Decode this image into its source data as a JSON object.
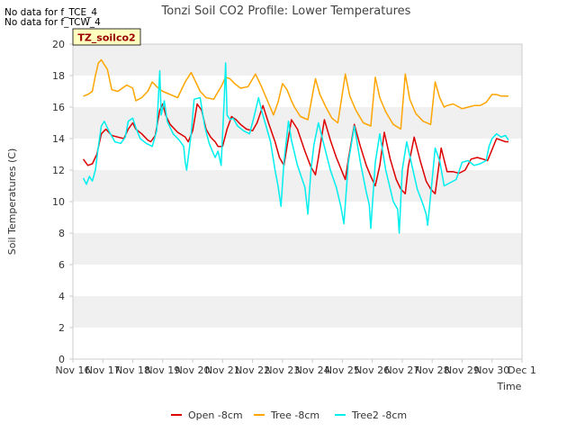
{
  "notes": [
    "No data for f_TCE_4",
    "No data for f_TCW_4"
  ],
  "site_badge": "TZ_soilco2",
  "colors": {
    "band": "#f0f0f0",
    "axis": "#cccccc",
    "text": "#333333",
    "badge_bg": "#ffffc0",
    "badge_text": "#990000"
  },
  "chart_data": {
    "type": "line",
    "title": "Tonzi Soil CO2 Profile: Lower Temperatures",
    "xlabel": "Time",
    "ylabel": "Soil Temperatures (C)",
    "xlim": [
      0,
      15
    ],
    "ylim": [
      0,
      20
    ],
    "x_ticks": [
      0,
      1,
      2,
      3,
      4,
      5,
      6,
      7,
      8,
      9,
      10,
      11,
      12,
      13,
      14,
      15
    ],
    "x_tick_labels": [
      "Nov 16",
      "Nov 17",
      "Nov 18",
      "Nov 19",
      "Nov 20",
      "Nov 21",
      "Nov 22",
      "Nov 23",
      "Nov 24",
      "Nov 25",
      "Nov 26",
      "Nov 27",
      "Nov 28",
      "Nov 29",
      "Nov 30",
      "Dec 1"
    ],
    "y_ticks": [
      0,
      2,
      4,
      6,
      8,
      10,
      12,
      14,
      16,
      18,
      20
    ],
    "grid": "alternating horizontal bands",
    "legend_position": "bottom",
    "series": [
      {
        "name": "Open -8cm",
        "color": "#dd0000",
        "x": [
          0.35,
          0.5,
          0.65,
          0.8,
          0.95,
          1.1,
          1.3,
          1.5,
          1.7,
          1.85,
          2.0,
          2.1,
          2.3,
          2.5,
          2.6,
          2.75,
          2.9,
          3.0,
          3.1,
          3.25,
          3.5,
          3.75,
          3.85,
          4.0,
          4.15,
          4.3,
          4.45,
          4.6,
          4.75,
          4.85,
          5.0,
          5.15,
          5.3,
          5.45,
          5.6,
          5.8,
          6.0,
          6.15,
          6.35,
          6.55,
          6.75,
          6.9,
          7.05,
          7.15,
          7.3,
          7.5,
          7.75,
          7.95,
          8.1,
          8.2,
          8.4,
          8.6,
          8.8,
          8.95,
          9.1,
          9.2,
          9.4,
          9.6,
          9.8,
          9.95,
          10.1,
          10.25,
          10.4,
          10.6,
          10.8,
          10.95,
          11.1,
          11.2,
          11.4,
          11.6,
          11.8,
          11.95,
          12.1,
          12.3,
          12.5,
          12.7,
          12.9,
          13.1,
          13.3,
          13.5,
          13.7,
          13.85,
          14.0,
          14.15,
          14.3,
          14.45,
          14.55
        ],
        "y": [
          12.7,
          12.3,
          12.4,
          13.0,
          14.3,
          14.6,
          14.2,
          14.1,
          14.0,
          14.6,
          15.0,
          14.6,
          14.3,
          13.9,
          13.8,
          14.2,
          15.8,
          16.2,
          15.5,
          14.9,
          14.4,
          14.1,
          13.8,
          14.5,
          16.2,
          15.8,
          14.6,
          14.1,
          13.8,
          13.5,
          13.5,
          14.6,
          15.4,
          15.2,
          14.9,
          14.6,
          14.5,
          15.0,
          16.1,
          14.9,
          13.8,
          12.8,
          12.3,
          13.5,
          15.2,
          14.6,
          13.2,
          12.2,
          11.7,
          12.8,
          15.2,
          13.9,
          12.8,
          12.1,
          11.4,
          12.7,
          14.9,
          13.5,
          12.3,
          11.6,
          11.0,
          12.3,
          14.4,
          12.7,
          11.4,
          10.8,
          10.5,
          12.2,
          14.1,
          12.6,
          11.3,
          10.8,
          10.5,
          13.4,
          11.9,
          11.9,
          11.8,
          12.0,
          12.7,
          12.8,
          12.7,
          12.6,
          13.3,
          14.0,
          13.9,
          13.8,
          13.8
        ]
      },
      {
        "name": "Tree -8cm",
        "color": "#ffa500",
        "x": [
          0.35,
          0.5,
          0.65,
          0.75,
          0.85,
          0.95,
          1.05,
          1.15,
          1.3,
          1.5,
          1.65,
          1.8,
          2.0,
          2.1,
          2.3,
          2.5,
          2.65,
          2.8,
          3.0,
          3.25,
          3.5,
          3.75,
          3.95,
          4.1,
          4.25,
          4.45,
          4.7,
          4.95,
          5.1,
          5.25,
          5.4,
          5.6,
          5.85,
          6.1,
          6.3,
          6.5,
          6.7,
          6.85,
          7.0,
          7.15,
          7.3,
          7.4,
          7.6,
          7.85,
          8.1,
          8.25,
          8.45,
          8.65,
          8.85,
          9.1,
          9.25,
          9.45,
          9.7,
          9.95,
          10.1,
          10.25,
          10.45,
          10.7,
          10.95,
          11.1,
          11.25,
          11.45,
          11.7,
          11.95,
          12.1,
          12.25,
          12.4,
          12.5,
          12.7,
          12.9,
          13.0,
          13.2,
          13.4,
          13.6,
          13.8,
          14.0,
          14.15,
          14.3,
          14.45,
          14.55
        ],
        "y": [
          16.7,
          16.8,
          17.0,
          18.0,
          18.8,
          19.0,
          18.7,
          18.4,
          17.1,
          17.0,
          17.2,
          17.4,
          17.2,
          16.4,
          16.6,
          17.0,
          17.6,
          17.3,
          17.0,
          16.8,
          16.6,
          17.6,
          18.2,
          17.6,
          17.0,
          16.6,
          16.5,
          17.3,
          17.9,
          17.8,
          17.5,
          17.2,
          17.3,
          18.1,
          17.3,
          16.4,
          15.5,
          16.3,
          17.5,
          17.1,
          16.4,
          16.0,
          15.4,
          15.2,
          17.8,
          16.8,
          16.0,
          15.3,
          15.0,
          18.1,
          16.7,
          15.8,
          15.0,
          14.8,
          17.9,
          16.6,
          15.7,
          14.9,
          14.6,
          18.1,
          16.5,
          15.6,
          15.1,
          14.9,
          17.6,
          16.6,
          16.0,
          16.1,
          16.2,
          16.0,
          15.9,
          16.0,
          16.1,
          16.1,
          16.3,
          16.8,
          16.8,
          16.7,
          16.7,
          16.7
        ]
      },
      {
        "name": "Tree2 -8cm",
        "color": "#00eeee",
        "x": [
          0.35,
          0.45,
          0.55,
          0.65,
          0.75,
          0.85,
          0.95,
          1.05,
          1.2,
          1.4,
          1.6,
          1.75,
          1.85,
          2.0,
          2.1,
          2.25,
          2.45,
          2.65,
          2.8,
          2.9,
          2.95,
          3.05,
          3.15,
          3.35,
          3.55,
          3.7,
          3.75,
          3.8,
          3.95,
          4.05,
          4.25,
          4.4,
          4.55,
          4.75,
          4.85,
          4.95,
          5.05,
          5.1,
          5.15,
          5.25,
          5.35,
          5.5,
          5.7,
          5.9,
          6.05,
          6.2,
          6.3,
          6.45,
          6.6,
          6.75,
          6.85,
          6.95,
          7.05,
          7.2,
          7.3,
          7.5,
          7.75,
          7.85,
          7.95,
          8.05,
          8.2,
          8.4,
          8.6,
          8.8,
          8.95,
          9.05,
          9.2,
          9.4,
          9.6,
          9.8,
          9.9,
          9.95,
          10.1,
          10.25,
          10.45,
          10.7,
          10.85,
          10.9,
          11.0,
          11.15,
          11.3,
          11.5,
          11.7,
          11.8,
          11.85,
          12.0,
          12.1,
          12.25,
          12.4,
          12.6,
          12.8,
          13.0,
          13.2,
          13.4,
          13.6,
          13.8,
          13.9,
          14.0,
          14.15,
          14.3,
          14.45,
          14.55
        ],
        "y": [
          11.5,
          11.1,
          11.6,
          11.3,
          12.0,
          13.5,
          14.8,
          15.1,
          14.5,
          13.8,
          13.7,
          14.1,
          15.1,
          15.3,
          14.7,
          14.0,
          13.7,
          13.5,
          14.5,
          18.3,
          15.5,
          16.4,
          15.1,
          14.3,
          13.9,
          13.5,
          12.5,
          12.0,
          14.3,
          16.5,
          16.6,
          14.8,
          13.7,
          12.8,
          13.2,
          12.3,
          16.3,
          18.8,
          15.5,
          15.2,
          15.3,
          14.8,
          14.5,
          14.3,
          15.4,
          16.6,
          15.8,
          14.8,
          13.8,
          12.0,
          11.0,
          9.7,
          12.5,
          15.1,
          13.9,
          12.3,
          10.9,
          9.2,
          12.0,
          13.6,
          15.0,
          13.5,
          12.0,
          10.9,
          9.7,
          8.6,
          12.5,
          14.8,
          12.5,
          10.6,
          9.8,
          8.3,
          12.5,
          14.3,
          12.0,
          10.0,
          9.5,
          8.0,
          12.0,
          13.8,
          12.5,
          10.8,
          9.8,
          9.2,
          8.5,
          11.4,
          13.4,
          12.6,
          11.0,
          11.2,
          11.4,
          12.5,
          12.6,
          12.3,
          12.4,
          12.6,
          13.5,
          14.0,
          14.3,
          14.1,
          14.2,
          13.9
        ]
      }
    ]
  }
}
